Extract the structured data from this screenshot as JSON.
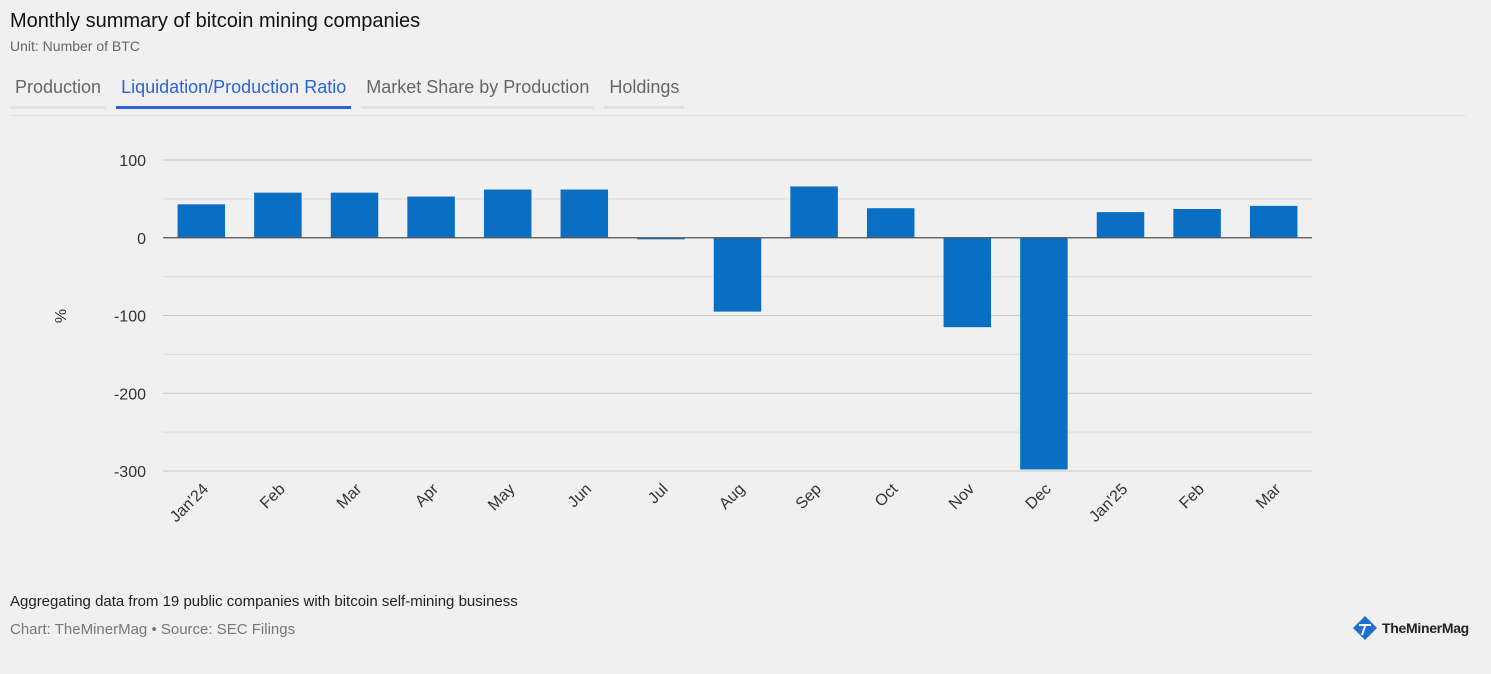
{
  "header": {
    "title": "Monthly summary of bitcoin mining companies",
    "subtitle": "Unit: Number of BTC"
  },
  "tabs": [
    {
      "label": "Production",
      "active": false
    },
    {
      "label": "Liquidation/Production Ratio",
      "active": true
    },
    {
      "label": "Market Share by Production",
      "active": false
    },
    {
      "label": "Holdings",
      "active": false
    }
  ],
  "chart_data": {
    "type": "bar",
    "categories": [
      "Jan'24",
      "Feb",
      "Mar",
      "Apr",
      "May",
      "Jun",
      "Jul",
      "Aug",
      "Sep",
      "Oct",
      "Nov",
      "Dec",
      "Jan'25",
      "Feb",
      "Mar"
    ],
    "values": [
      43,
      58,
      58,
      53,
      62,
      62,
      -2,
      -95,
      66,
      38,
      -115,
      -298,
      33,
      37,
      41
    ],
    "ylabel": "%",
    "xlabel": "",
    "ylim": [
      -300,
      100
    ],
    "yticks": [
      100,
      0,
      -100,
      -200,
      -300
    ],
    "grid": true,
    "color": "#0a6fc2"
  },
  "footer": {
    "note": "Aggregating data from 19 public companies with bitcoin self-mining business",
    "credit": "Chart: TheMinerMag • Source: SEC Filings",
    "logo_text": "TheMinerMag"
  },
  "colors": {
    "background": "#f0f0f0",
    "accent": "#2a64d9",
    "bar": "#0a6fc2"
  }
}
